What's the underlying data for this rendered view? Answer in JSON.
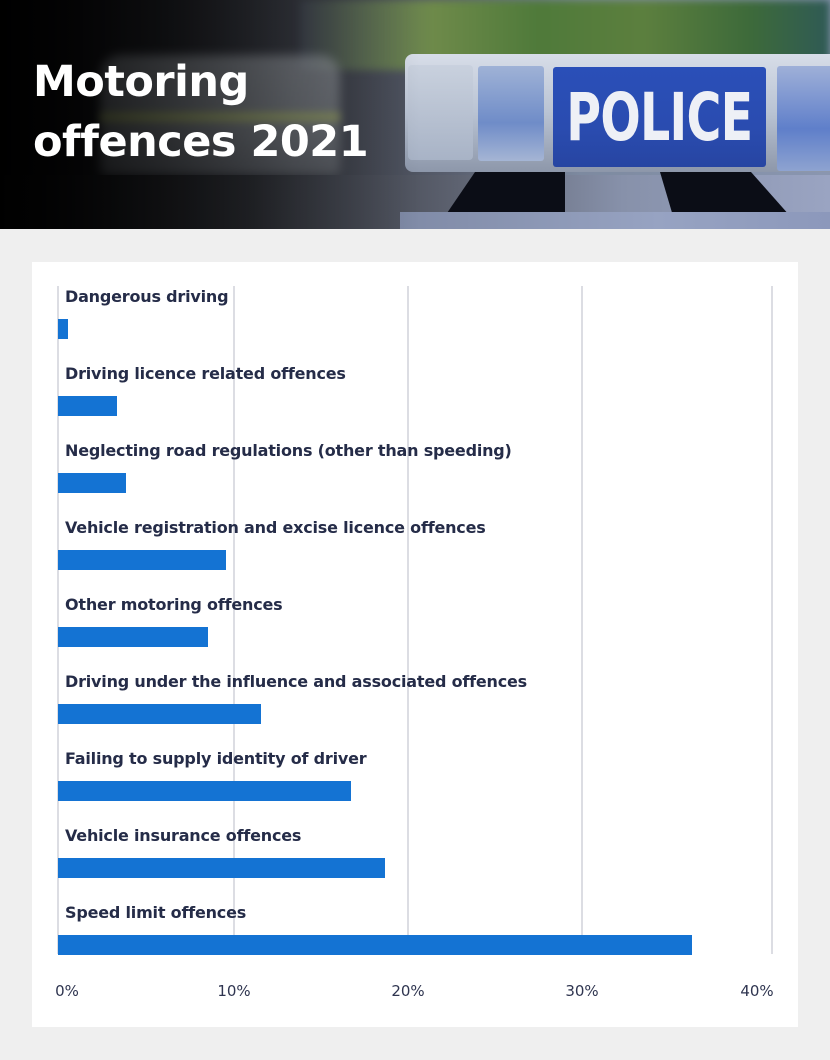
{
  "header": {
    "title_line1": "Motoring",
    "title_line2": "offences 2021",
    "photo_sign_text": "POLICE"
  },
  "colors": {
    "bar": "#1473d3",
    "label_text": "#252c48",
    "gridline": "#dcdde3",
    "page_background": "#efefef",
    "card_background": "#ffffff"
  },
  "axis": {
    "ticks": [
      "0%",
      "10%",
      "20%",
      "30%",
      "40%"
    ]
  },
  "rows": [
    {
      "label": "Dangerous driving",
      "value": 0.6
    },
    {
      "label": "Driving licence related offences",
      "value": 3.4
    },
    {
      "label": "Neglecting road regulations (other than speeding)",
      "value": 3.9
    },
    {
      "label": "Vehicle registration and excise licence offences",
      "value": 9.6
    },
    {
      "label": "Other motoring offences",
      "value": 8.6
    },
    {
      "label": "Driving under the influence and associated offences",
      "value": 11.6
    },
    {
      "label": "Failing to supply identity of driver",
      "value": 16.8
    },
    {
      "label": "Vehicle insurance offences",
      "value": 18.7
    },
    {
      "label": "Speed limit offences",
      "value": 36.3
    }
  ],
  "chart_data": {
    "type": "bar",
    "orientation": "horizontal",
    "title": "Motoring offences 2021",
    "xlabel": "",
    "ylabel": "",
    "categories": [
      "Dangerous driving",
      "Driving licence related offences",
      "Neglecting road regulations (other than speeding)",
      "Vehicle registration and excise licence offences",
      "Other motoring offences",
      "Driving under the influence and associated offences",
      "Failing to supply identity of driver",
      "Vehicle insurance offences",
      "Speed limit offences"
    ],
    "values": [
      0.6,
      3.4,
      3.9,
      9.6,
      8.6,
      11.6,
      16.8,
      18.7,
      36.3
    ],
    "unit": "%",
    "xlim": [
      0,
      40
    ],
    "x_ticks": [
      "0%",
      "10%",
      "20%",
      "30%",
      "40%"
    ],
    "grid": true,
    "legend": "none"
  }
}
